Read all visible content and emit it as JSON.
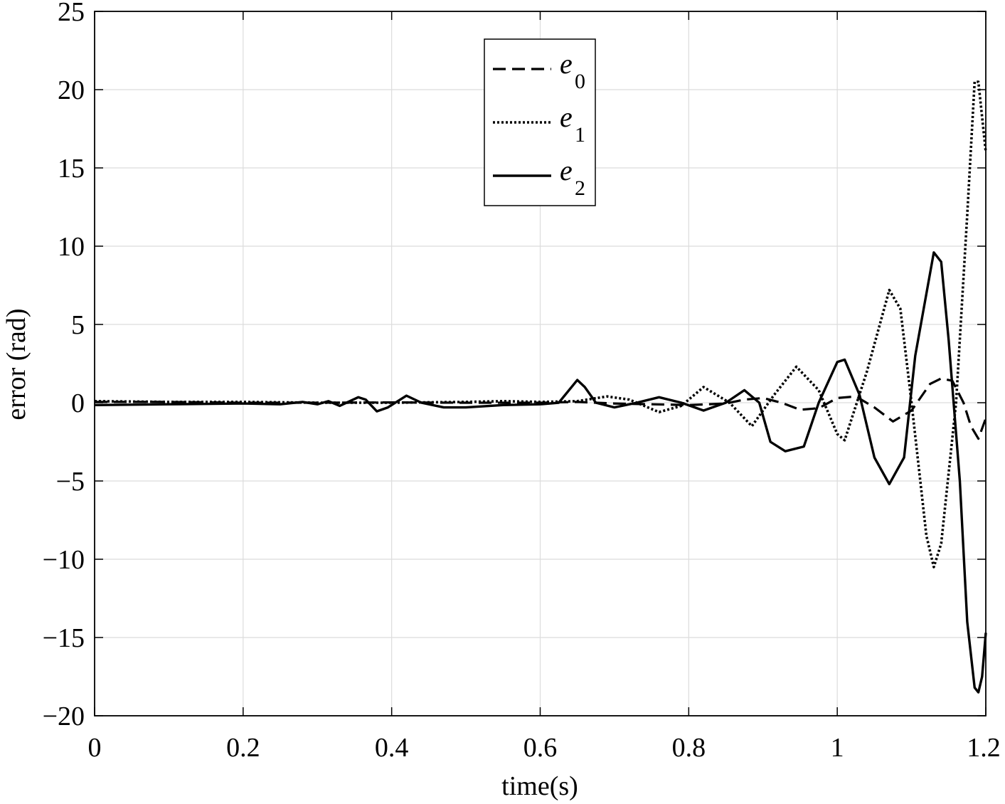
{
  "chart_data": {
    "type": "line",
    "xlabel": "time(s)",
    "ylabel": "error (rad)",
    "xlim": [
      0,
      1.2
    ],
    "ylim": [
      -20,
      25
    ],
    "x_ticks": [
      0,
      0.2,
      0.4,
      0.6,
      0.8,
      1,
      1.2
    ],
    "x_tick_labels": [
      "0",
      "0.2",
      "0.4",
      "0.6",
      "0.8",
      "1",
      "1.2"
    ],
    "y_ticks": [
      -20,
      -15,
      -10,
      -5,
      0,
      5,
      10,
      15,
      20,
      25
    ],
    "y_tick_labels": [
      "−20",
      "−15",
      "−10",
      "−5",
      "0",
      "5",
      "10",
      "15",
      "20",
      "25"
    ],
    "grid": true,
    "legend_position": "top-center",
    "series": [
      {
        "name": "e0",
        "symbol": "e",
        "subscript": "0",
        "line_style": "dashed",
        "color": "#000000",
        "points": [
          [
            0,
            0.05
          ],
          [
            0.1,
            0.05
          ],
          [
            0.2,
            0.0
          ],
          [
            0.3,
            0.0
          ],
          [
            0.4,
            0.02
          ],
          [
            0.5,
            0.0
          ],
          [
            0.6,
            0.0
          ],
          [
            0.65,
            0.05
          ],
          [
            0.7,
            -0.05
          ],
          [
            0.75,
            -0.1
          ],
          [
            0.8,
            -0.15
          ],
          [
            0.85,
            -0.05
          ],
          [
            0.875,
            0.2
          ],
          [
            0.9,
            0.3
          ],
          [
            0.925,
            0.0
          ],
          [
            0.95,
            -0.45
          ],
          [
            0.975,
            -0.35
          ],
          [
            1.0,
            0.3
          ],
          [
            1.025,
            0.4
          ],
          [
            1.05,
            -0.3
          ],
          [
            1.075,
            -1.2
          ],
          [
            1.1,
            -0.5
          ],
          [
            1.125,
            1.2
          ],
          [
            1.14,
            1.55
          ],
          [
            1.155,
            1.4
          ],
          [
            1.17,
            0.0
          ],
          [
            1.18,
            -1.5
          ],
          [
            1.19,
            -2.3
          ],
          [
            1.2,
            -1.0
          ]
        ]
      },
      {
        "name": "e1",
        "symbol": "e",
        "subscript": "1",
        "line_style": "dotted",
        "color": "#000000",
        "points": [
          [
            0,
            0.1
          ],
          [
            0.1,
            0.05
          ],
          [
            0.2,
            0.05
          ],
          [
            0.3,
            0.0
          ],
          [
            0.4,
            0.0
          ],
          [
            0.5,
            0.05
          ],
          [
            0.55,
            0.1
          ],
          [
            0.6,
            0.05
          ],
          [
            0.65,
            0.1
          ],
          [
            0.69,
            0.4
          ],
          [
            0.72,
            0.2
          ],
          [
            0.76,
            -0.6
          ],
          [
            0.79,
            -0.2
          ],
          [
            0.82,
            1.0
          ],
          [
            0.855,
            0.0
          ],
          [
            0.885,
            -1.5
          ],
          [
            0.915,
            0.5
          ],
          [
            0.945,
            2.3
          ],
          [
            0.975,
            0.8
          ],
          [
            1.0,
            -2.0
          ],
          [
            1.01,
            -2.4
          ],
          [
            1.04,
            2.0
          ],
          [
            1.07,
            7.2
          ],
          [
            1.085,
            6.0
          ],
          [
            1.1,
            0.0
          ],
          [
            1.12,
            -8.5
          ],
          [
            1.13,
            -10.5
          ],
          [
            1.14,
            -9.0
          ],
          [
            1.16,
            0.0
          ],
          [
            1.175,
            12.0
          ],
          [
            1.185,
            20.5
          ],
          [
            1.19,
            20.5
          ],
          [
            1.2,
            16.0
          ]
        ]
      },
      {
        "name": "e2",
        "symbol": "e",
        "subscript": "2",
        "line_style": "solid",
        "color": "#000000",
        "points": [
          [
            0,
            -0.15
          ],
          [
            0.1,
            -0.1
          ],
          [
            0.2,
            -0.05
          ],
          [
            0.25,
            -0.1
          ],
          [
            0.28,
            0.05
          ],
          [
            0.3,
            -0.1
          ],
          [
            0.315,
            0.1
          ],
          [
            0.33,
            -0.2
          ],
          [
            0.355,
            0.35
          ],
          [
            0.365,
            0.2
          ],
          [
            0.38,
            -0.55
          ],
          [
            0.395,
            -0.3
          ],
          [
            0.42,
            0.45
          ],
          [
            0.44,
            0.0
          ],
          [
            0.47,
            -0.3
          ],
          [
            0.5,
            -0.3
          ],
          [
            0.55,
            -0.15
          ],
          [
            0.6,
            -0.1
          ],
          [
            0.625,
            0.0
          ],
          [
            0.65,
            1.45
          ],
          [
            0.66,
            1.0
          ],
          [
            0.675,
            0.0
          ],
          [
            0.7,
            -0.3
          ],
          [
            0.73,
            0.0
          ],
          [
            0.76,
            0.35
          ],
          [
            0.79,
            0.0
          ],
          [
            0.82,
            -0.5
          ],
          [
            0.85,
            0.0
          ],
          [
            0.875,
            0.8
          ],
          [
            0.895,
            0.0
          ],
          [
            0.91,
            -2.5
          ],
          [
            0.93,
            -3.1
          ],
          [
            0.955,
            -2.8
          ],
          [
            0.975,
            0.0
          ],
          [
            1.0,
            2.6
          ],
          [
            1.01,
            2.75
          ],
          [
            1.03,
            0.5
          ],
          [
            1.05,
            -3.5
          ],
          [
            1.07,
            -5.2
          ],
          [
            1.09,
            -3.5
          ],
          [
            1.105,
            3.0
          ],
          [
            1.13,
            9.6
          ],
          [
            1.14,
            9.0
          ],
          [
            1.15,
            4.0
          ],
          [
            1.165,
            -5.0
          ],
          [
            1.175,
            -14.0
          ],
          [
            1.185,
            -18.2
          ],
          [
            1.19,
            -18.5
          ],
          [
            1.195,
            -17.5
          ],
          [
            1.2,
            -14.7
          ]
        ]
      }
    ]
  }
}
